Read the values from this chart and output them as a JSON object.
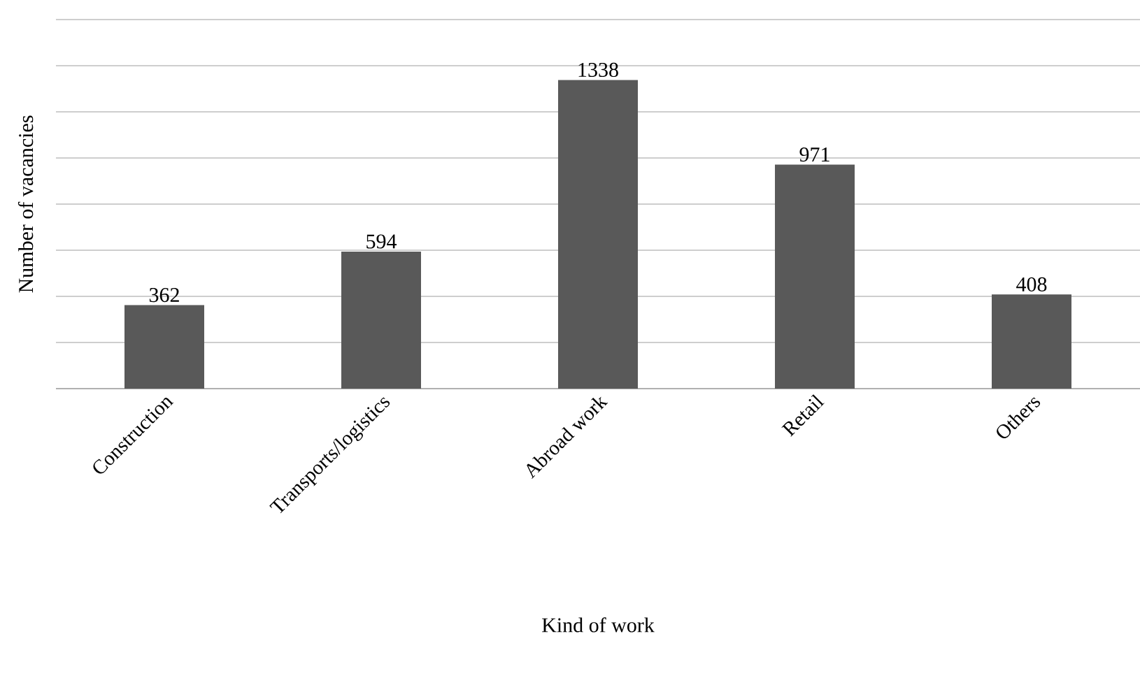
{
  "chart_data": {
    "type": "bar",
    "xlabel": "Kind of work",
    "ylabel": "Number of vacancies",
    "categories": [
      "Construction",
      "Transports/logistics",
      "Abroad work",
      "Retail",
      "Others"
    ],
    "values": [
      362,
      594,
      1338,
      971,
      408
    ],
    "color": "#595959",
    "data_labels": true,
    "ylim": [
      0,
      1600
    ],
    "yticks": [
      {
        "value": 0,
        "label": null
      },
      {
        "value": 200,
        "label": null
      },
      {
        "value": 400,
        "label": null
      },
      {
        "value": 600,
        "label": null
      },
      {
        "value": 800,
        "label": null
      },
      {
        "value": 1000,
        "label": null
      },
      {
        "value": 1200,
        "label": null
      },
      {
        "value": 1400,
        "label": null
      },
      {
        "value": 1600,
        "label": null
      }
    ],
    "tick_labels": "x",
    "grid": "y"
  }
}
